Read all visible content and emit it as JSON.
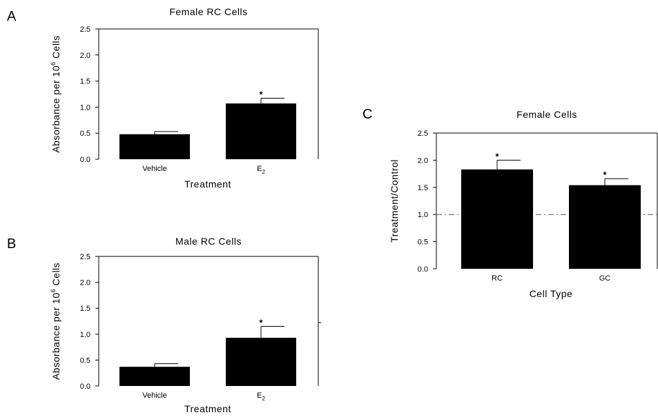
{
  "figure": {
    "panel_labels": [
      "A",
      "B",
      "C"
    ]
  },
  "chart_data": [
    {
      "panel": "A",
      "type": "bar",
      "title": "Female RC Cells",
      "xlabel": "Treatment",
      "ylabel": "Absorbance per 10^6 Cells",
      "ylabel_parts": {
        "pre": "Absorbance per 10",
        "sup": "6",
        "post": " Cells"
      },
      "categories": [
        {
          "main": "Vehicle",
          "sub": ""
        },
        {
          "main": "E",
          "sub": "2"
        }
      ],
      "values": [
        0.48,
        1.07
      ],
      "errors": [
        0.05,
        0.1
      ],
      "significance": [
        "",
        "*"
      ],
      "ylim": [
        0,
        2.5
      ],
      "yticks": [
        "0.0",
        "0.5",
        "1.0",
        "1.5",
        "2.0",
        "2.5"
      ],
      "bar_color": "#000000",
      "grid": false,
      "reference_line": null
    },
    {
      "panel": "B",
      "type": "bar",
      "title": "Male RC Cells",
      "xlabel": "Treatment",
      "ylabel": "Absorbance per 10^6 Cells",
      "ylabel_parts": {
        "pre": "Absorbance per 10",
        "sup": "6",
        "post": " Cells"
      },
      "categories": [
        {
          "main": "Vehicle",
          "sub": ""
        },
        {
          "main": "E",
          "sub": "2"
        }
      ],
      "values": [
        0.37,
        0.93
      ],
      "errors": [
        0.06,
        0.22
      ],
      "significance": [
        "",
        "*"
      ],
      "ylim": [
        0,
        2.5
      ],
      "yticks": [
        "0.0",
        "0.5",
        "1.0",
        "1.5",
        "2.0",
        "2.5"
      ],
      "bar_color": "#000000",
      "grid": false,
      "reference_line": null
    },
    {
      "panel": "C",
      "type": "bar",
      "title": "Female Cells",
      "xlabel": "Cell Type",
      "ylabel": "Treatment/Control",
      "ylabel_parts": {
        "pre": "Treatment/Control",
        "sup": "",
        "post": ""
      },
      "categories": [
        {
          "main": "RC",
          "sub": ""
        },
        {
          "main": "GC",
          "sub": ""
        }
      ],
      "values": [
        1.83,
        1.54
      ],
      "errors": [
        0.17,
        0.12
      ],
      "significance": [
        "*",
        "*"
      ],
      "ylim": [
        0,
        2.5
      ],
      "yticks": [
        "0.0",
        "0.5",
        "1.0",
        "1.5",
        "2.0",
        "2.5"
      ],
      "bar_color": "#000000",
      "grid": false,
      "reference_line": 1.0
    }
  ]
}
